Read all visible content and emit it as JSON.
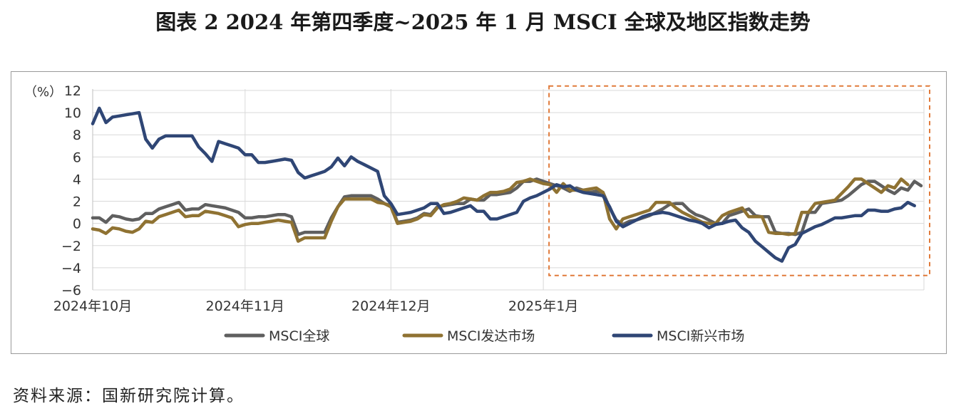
{
  "title": "图表 2  2024 年第四季度~2025 年 1 月 MSCI 全球及地区指数走势",
  "source": "资料来源：国新研究院计算。",
  "chart_data": {
    "type": "line",
    "unit_label": "（%）",
    "y_ticks": [
      "12",
      "10",
      "8",
      "6",
      "4",
      "2",
      "0",
      "−2",
      "−4",
      "−6"
    ],
    "ylim": [
      -6,
      12
    ],
    "x_month_labels": [
      "2024年10月",
      "2024年11月",
      "2024年12月",
      "2025年1月"
    ],
    "x_label_index": [
      0,
      23,
      45,
      68
    ],
    "grid": "vertical and horizontal",
    "legend_position": "bottom",
    "highlight": {
      "from_index": 68,
      "to_index": 91,
      "y_from": -4.7,
      "y_to": 12.4,
      "color": "#e07a3a"
    },
    "series": [
      {
        "name": "MSCI全球",
        "color": "#5f5f5f",
        "values": [
          0.5,
          0.5,
          0.1,
          0.7,
          0.6,
          0.4,
          0.3,
          0.4,
          0.9,
          0.9,
          1.3,
          1.5,
          1.7,
          1.9,
          1.2,
          1.3,
          1.3,
          1.7,
          1.6,
          1.5,
          1.4,
          1.2,
          1.0,
          0.5,
          0.5,
          0.6,
          0.6,
          0.7,
          0.8,
          0.8,
          0.6,
          -1.0,
          -0.8,
          -0.8,
          -0.8,
          -0.8,
          0.5,
          1.5,
          2.4,
          2.5,
          2.5,
          2.5,
          2.5,
          2.2,
          1.8,
          1.6,
          0.1,
          0.2,
          0.3,
          0.5,
          0.9,
          0.8,
          1.5,
          1.6,
          1.7,
          1.8,
          1.8,
          2.2,
          2.1,
          2.1,
          2.6,
          2.6,
          2.7,
          2.8,
          3.2,
          3.8,
          3.8,
          4.0,
          3.8,
          3.6,
          3.4,
          3.2,
          2.9,
          3.2,
          3.0,
          2.8,
          2.9,
          2.8,
          1.4,
          0.3,
          -0.1,
          0.2,
          0.3,
          0.5,
          0.7,
          1.0,
          1.3,
          1.7,
          1.8,
          1.8,
          1.2,
          0.8,
          0.6,
          0.3,
          0.0,
          0.0,
          0.7,
          0.9,
          1.1,
          1.3,
          0.7,
          0.6,
          0.6,
          -0.8,
          -0.9,
          -0.9,
          -1.0,
          -0.8,
          1.0,
          1.0,
          1.8,
          1.9,
          2.0,
          2.1,
          2.5,
          3.0,
          3.5,
          3.8,
          3.8,
          3.4,
          3.0,
          2.7,
          3.2,
          3.0,
          3.8,
          3.4
        ]
      },
      {
        "name": "MSCI发达市场",
        "color": "#8f7232",
        "values": [
          -0.5,
          -0.6,
          -0.9,
          -0.4,
          -0.5,
          -0.7,
          -0.8,
          -0.5,
          0.2,
          0.1,
          0.6,
          0.8,
          1.0,
          1.2,
          0.6,
          0.7,
          0.7,
          1.1,
          1.0,
          0.9,
          0.7,
          0.5,
          -0.3,
          -0.1,
          0.0,
          0.0,
          0.1,
          0.2,
          0.3,
          0.2,
          0.1,
          -1.6,
          -1.3,
          -1.3,
          -1.3,
          -1.3,
          0.2,
          1.5,
          2.2,
          2.2,
          2.2,
          2.2,
          2.2,
          1.9,
          1.8,
          1.5,
          0.0,
          0.1,
          0.2,
          0.4,
          0.8,
          0.7,
          1.4,
          1.7,
          1.8,
          2.0,
          2.3,
          2.2,
          2.1,
          2.5,
          2.8,
          2.8,
          2.9,
          3.1,
          3.7,
          3.8,
          4.0,
          3.8,
          3.6,
          3.5,
          2.8,
          3.6,
          3.0,
          3.0,
          3.0,
          3.1,
          3.2,
          2.8,
          0.4,
          -0.5,
          0.4,
          0.6,
          0.8,
          1.0,
          1.2,
          1.9,
          1.9,
          1.9,
          1.4,
          1.0,
          0.7,
          0.4,
          0.1,
          0.0,
          0.0,
          0.7,
          1.0,
          1.2,
          1.4,
          0.6,
          0.6,
          0.6,
          -0.8,
          -0.9,
          -0.9,
          -1.0,
          -0.9,
          1.0,
          1.0,
          1.8,
          1.9,
          2.0,
          2.1,
          2.7,
          3.3,
          4.0,
          4.0,
          3.6,
          3.2,
          2.8,
          3.4,
          3.2,
          4.0,
          3.5
        ]
      },
      {
        "name": "MSCI新兴市场",
        "color": "#2f4675",
        "values": [
          9.0,
          10.4,
          9.1,
          9.6,
          9.7,
          9.8,
          9.9,
          10.0,
          7.6,
          6.8,
          7.6,
          7.9,
          7.9,
          7.9,
          7.9,
          7.9,
          6.9,
          6.3,
          5.6,
          7.4,
          7.2,
          7.0,
          6.8,
          6.2,
          6.2,
          5.5,
          5.5,
          5.6,
          5.7,
          5.8,
          5.7,
          4.6,
          4.1,
          4.3,
          4.5,
          4.7,
          5.1,
          5.9,
          5.2,
          6.0,
          5.6,
          5.3,
          5.0,
          4.7,
          2.5,
          1.8,
          0.8,
          0.9,
          1.0,
          1.2,
          1.4,
          1.8,
          1.8,
          0.9,
          1.0,
          1.2,
          1.4,
          1.6,
          1.1,
          1.1,
          0.4,
          0.4,
          0.6,
          0.8,
          1.0,
          2.0,
          2.3,
          2.5,
          2.8,
          3.1,
          3.5,
          3.3,
          3.4,
          3.0,
          2.8,
          2.7,
          2.6,
          2.5,
          1.5,
          0.2,
          -0.3,
          0.0,
          0.3,
          0.6,
          0.8,
          0.9,
          1.0,
          0.9,
          0.7,
          0.5,
          0.3,
          0.2,
          0.0,
          -0.4,
          -0.1,
          0.0,
          0.2,
          0.3,
          -0.4,
          -0.8,
          -1.6,
          -2.1,
          -2.6,
          -3.1,
          -3.4,
          -2.2,
          -1.9,
          -0.9,
          -0.6,
          -0.3,
          -0.1,
          0.2,
          0.5,
          0.5,
          0.6,
          0.7,
          0.7,
          1.2,
          1.2,
          1.1,
          1.1,
          1.3,
          1.4,
          1.9,
          1.6
        ]
      }
    ]
  }
}
